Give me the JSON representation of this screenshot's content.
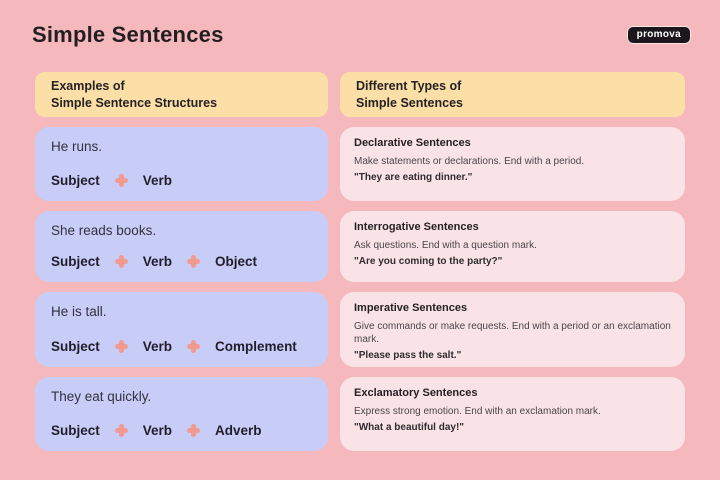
{
  "page": {
    "title": "Simple Sentences",
    "brand": "promova"
  },
  "colors": {
    "background": "#F5B9BD",
    "header_card": "#FBDFA6",
    "example_card": "#C8CDF8",
    "type_card": "#F9E3E6",
    "plus_icon": "#F09A90",
    "badge_background": "#1B171C",
    "badge_text": "#FFFFFF",
    "text_primary": "#262124"
  },
  "left_column": {
    "header": "Examples of\nSimple Sentence Structures",
    "cards": [
      {
        "sentence": "He runs.",
        "parts": [
          "Subject",
          "Verb"
        ]
      },
      {
        "sentence": "She reads books.",
        "parts": [
          "Subject",
          "Verb",
          "Object"
        ]
      },
      {
        "sentence": "He is tall.",
        "parts": [
          "Subject",
          "Verb",
          "Complement"
        ]
      },
      {
        "sentence": "They eat quickly.",
        "parts": [
          "Subject",
          "Verb",
          "Adverb"
        ]
      }
    ]
  },
  "right_column": {
    "header": "Different Types of\nSimple Sentences",
    "cards": [
      {
        "title": "Declarative Sentences",
        "description": "Make statements or declarations. End with a period.",
        "example": "\"They are eating dinner.\""
      },
      {
        "title": "Interrogative Sentences",
        "description": "Ask questions. End with a question mark.",
        "example": "\"Are you coming to the party?\""
      },
      {
        "title": "Imperative Sentences",
        "description": "Give commands or make requests. End with a period or an exclamation mark.",
        "example": "\"Please pass the salt.\""
      },
      {
        "title": "Exclamatory Sentences",
        "description": "Express strong emotion. End with an exclamation mark.",
        "example": "\"What a beautiful day!\""
      }
    ]
  }
}
